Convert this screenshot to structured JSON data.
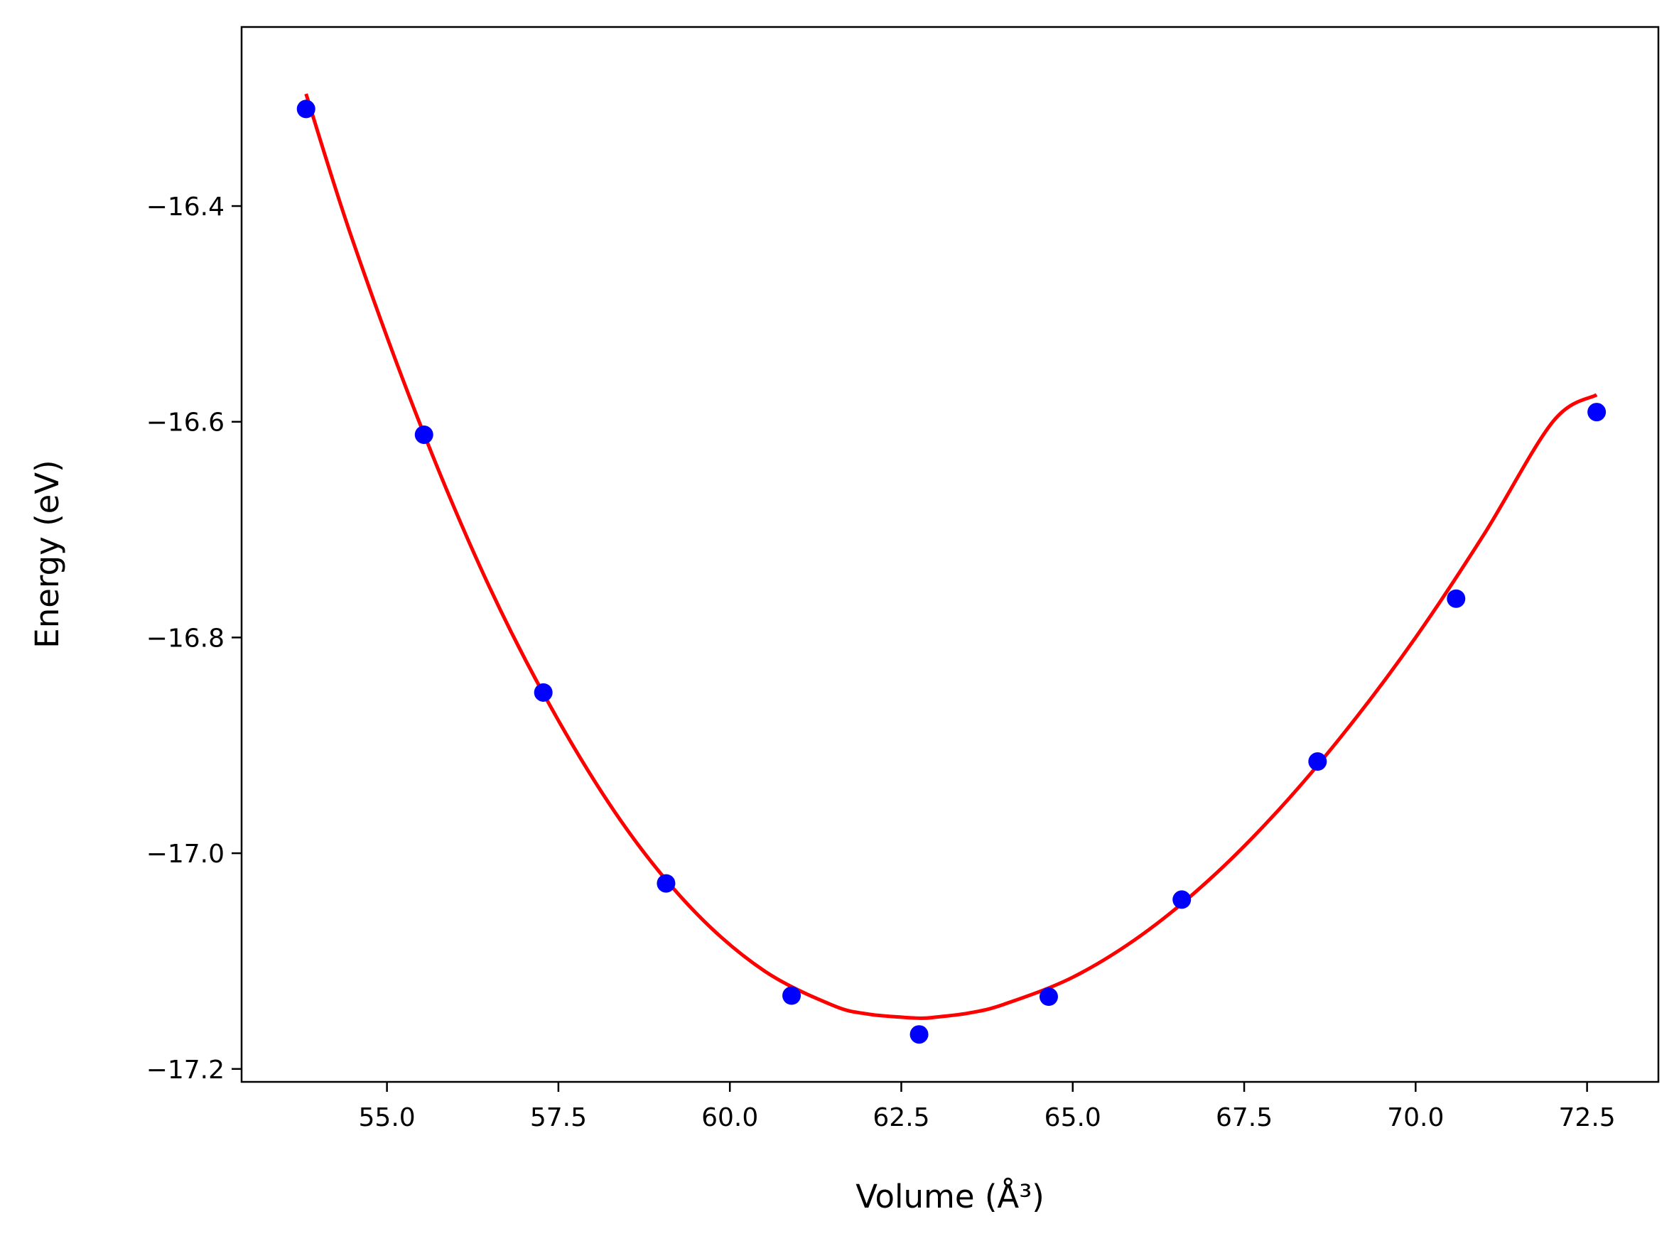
{
  "chart_data": {
    "type": "scatter",
    "title": "",
    "xlabel": "Volume (Å³)",
    "ylabel": "Energy (eV)",
    "xlim": [
      52.88,
      73.54
    ],
    "ylim": [
      -17.212,
      -16.234
    ],
    "x_ticks": [
      {
        "value": 55.0,
        "label": "55.0"
      },
      {
        "value": 57.5,
        "label": "57.5"
      },
      {
        "value": 60.0,
        "label": "60.0"
      },
      {
        "value": 62.5,
        "label": "62.5"
      },
      {
        "value": 65.0,
        "label": "65.0"
      },
      {
        "value": 67.5,
        "label": "67.5"
      },
      {
        "value": 70.0,
        "label": "70.0"
      },
      {
        "value": 72.5,
        "label": "72.5"
      }
    ],
    "y_ticks": [
      {
        "value": -16.4,
        "label": "−16.4"
      },
      {
        "value": -16.6,
        "label": "−16.6"
      },
      {
        "value": -16.8,
        "label": "−16.8"
      },
      {
        "value": -17.0,
        "label": "−17.0"
      },
      {
        "value": -17.2,
        "label": "−17.2"
      }
    ],
    "grid": false,
    "legend": "none",
    "series": [
      {
        "kind": "points",
        "color": "#0000ff",
        "x": [
          53.82,
          55.54,
          57.28,
          59.07,
          60.9,
          62.76,
          64.65,
          66.59,
          68.57,
          70.59,
          72.64
        ],
        "y": [
          -16.31,
          -16.612,
          -16.851,
          -17.028,
          -17.132,
          -17.168,
          -17.133,
          -17.043,
          -16.915,
          -16.764,
          -16.591
        ]
      },
      {
        "kind": "fit-line",
        "color": "#ff0000",
        "x": [
          53.82,
          54.5,
          55.5,
          56.5,
          57.5,
          58.5,
          59.5,
          60.5,
          61.5,
          62.0,
          62.5,
          62.8,
          63.0,
          63.5,
          64.0,
          65.0,
          66.0,
          67.0,
          68.0,
          69.0,
          70.0,
          71.0,
          72.0,
          72.64
        ],
        "y": [
          -16.296,
          -16.432,
          -16.605,
          -16.754,
          -16.877,
          -16.978,
          -17.055,
          -17.109,
          -17.141,
          -17.149,
          -17.152,
          -17.153,
          -17.152,
          -17.148,
          -17.14,
          -17.115,
          -17.076,
          -17.024,
          -16.96,
          -16.885,
          -16.8,
          -16.704,
          -16.6,
          -16.575
        ]
      }
    ]
  }
}
